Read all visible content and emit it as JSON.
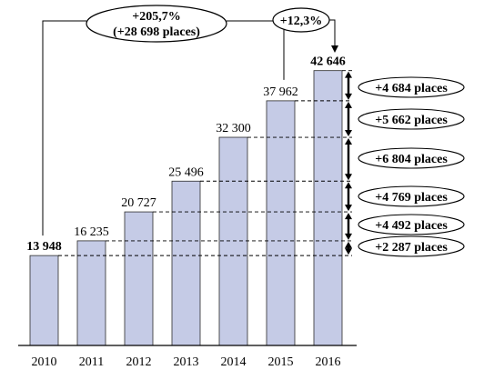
{
  "chart_data": {
    "type": "bar",
    "categories": [
      "2010",
      "2011",
      "2012",
      "2013",
      "2014",
      "2015",
      "2016"
    ],
    "values": [
      13948,
      16235,
      20727,
      25496,
      32300,
      37962,
      42646
    ],
    "value_labels": [
      "13 948",
      "16 235",
      "20 727",
      "25 496",
      "32 300",
      "37 962",
      "42 646"
    ],
    "title": "",
    "xlabel": "",
    "ylabel": "",
    "ylim": [
      0,
      44000
    ],
    "grid": false,
    "legend": "none",
    "bar_color": "#c5cbe6",
    "bar_edge_color": "#2b2b2b",
    "annotations": {
      "total_growth": {
        "line1": "+205,7%",
        "line2": "(+28 698 places)",
        "from": "2010",
        "to": "2016"
      },
      "last_year_growth": {
        "text": "+12,3%",
        "from": "2015",
        "to": "2016"
      },
      "increments": [
        {
          "from": "2015",
          "to": "2016",
          "label": "+4 684 places"
        },
        {
          "from": "2014",
          "to": "2015",
          "label": "+5 662 places"
        },
        {
          "from": "2013",
          "to": "2014",
          "label": "+6 804 places"
        },
        {
          "from": "2012",
          "to": "2013",
          "label": "+4 769 places"
        },
        {
          "from": "2011",
          "to": "2012",
          "label": "+4 492 places"
        },
        {
          "from": "2010",
          "to": "2011",
          "label": "+2 287 places"
        }
      ]
    }
  }
}
